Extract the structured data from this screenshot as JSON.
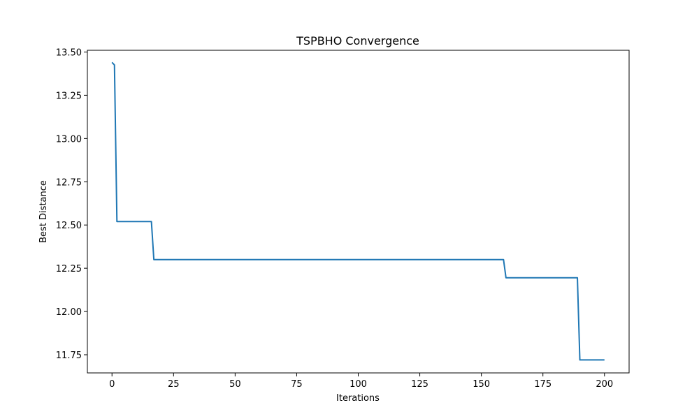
{
  "chart_data": {
    "type": "line",
    "title": "TSPBHO Convergence",
    "xlabel": "Iterations",
    "ylabel": "Best Distance",
    "xlim": [
      -10,
      210
    ],
    "ylim": [
      11.645,
      13.51
    ],
    "xticks": [
      0,
      25,
      50,
      75,
      100,
      125,
      150,
      175,
      200
    ],
    "yticks": [
      11.75,
      12.0,
      12.25,
      12.5,
      12.75,
      13.0,
      13.25,
      13.5
    ],
    "ytick_labels": [
      "11.75",
      "12.00",
      "12.25",
      "12.50",
      "12.75",
      "13.00",
      "13.25",
      "13.50"
    ],
    "grid": false,
    "legend": "none",
    "series": [
      {
        "color": "#1f77b4",
        "x": [
          0,
          1,
          2,
          16,
          17,
          159,
          160,
          189,
          190,
          200
        ],
        "y": [
          13.44,
          13.425,
          12.52,
          12.52,
          12.3,
          12.3,
          12.195,
          12.195,
          11.72,
          11.72
        ]
      }
    ]
  }
}
